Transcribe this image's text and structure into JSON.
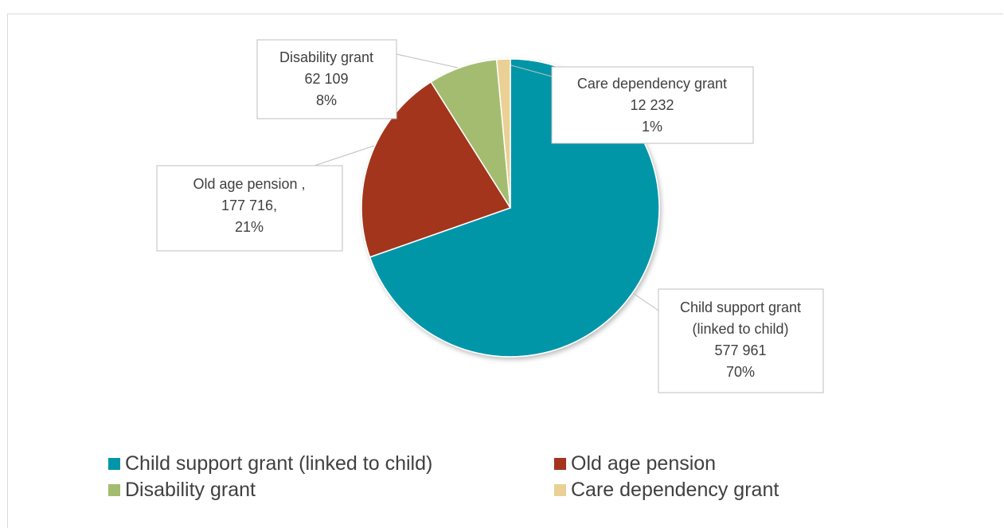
{
  "colors": {
    "child_support": "#0096a8",
    "old_age": "#a3351d",
    "disability": "#a4bc6f",
    "care_dependency": "#ead094",
    "label_border": "#bfbfbf",
    "text": "#404040"
  },
  "chart_data": {
    "type": "pie",
    "slices": [
      {
        "name": "Child support grant (linked to child)",
        "value": 577961,
        "percent": 70,
        "color": "#0096a8",
        "label_lines": [
          "Child support grant",
          "(linked to child)",
          "577 961",
          "70%"
        ]
      },
      {
        "name": "Old age pension",
        "value": 177716,
        "percent": 21,
        "color": "#a3351d",
        "label_lines": [
          "Old age pension ,",
          "177 716,",
          "21%"
        ]
      },
      {
        "name": "Disability grant",
        "value": 62109,
        "percent": 8,
        "color": "#a4bc6f",
        "label_lines": [
          "Disability grant",
          "62 109",
          "8%"
        ]
      },
      {
        "name": "Care dependency grant",
        "value": 12232,
        "percent": 1,
        "color": "#ead094",
        "label_lines": [
          "Care dependency grant",
          "12 232",
          "1%"
        ]
      }
    ],
    "legend": {
      "position": "bottom",
      "items": [
        "Child support grant (linked to child)",
        "Old age pension",
        "Disability grant",
        "Care dependency grant"
      ]
    }
  }
}
